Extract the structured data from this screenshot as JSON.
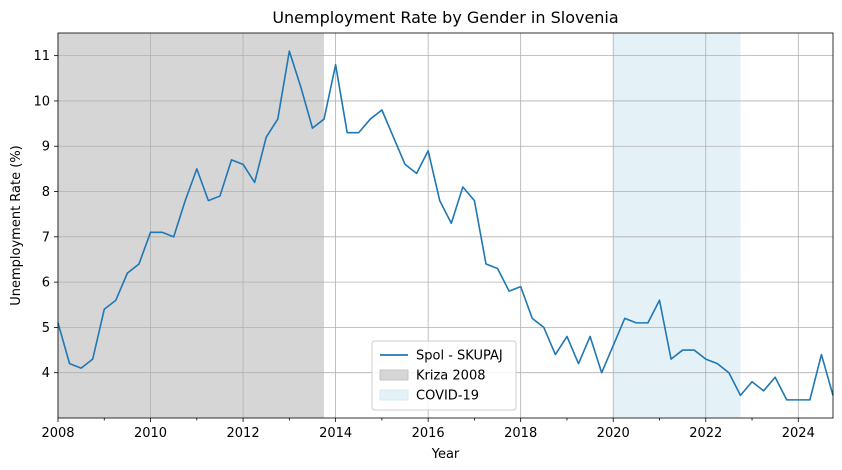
{
  "chart_data": {
    "type": "line",
    "title": "Unemployment Rate by Gender in Slovenia",
    "xlabel": "Year",
    "ylabel": "Unemployment Rate (%)",
    "xlim": [
      2008.0,
      2024.75
    ],
    "ylim": [
      3.0,
      11.5
    ],
    "grid": true,
    "legend_placement": "lower center",
    "x_ticks": [
      2008,
      2010,
      2012,
      2014,
      2016,
      2018,
      2020,
      2022,
      2024
    ],
    "y_ticks": [
      4,
      5,
      6,
      7,
      8,
      9,
      10,
      11
    ],
    "series": [
      {
        "name": "Spol - SKUPAJ",
        "color": "#1f77b4",
        "x": [
          2008.0,
          2008.25,
          2008.5,
          2008.75,
          2009.0,
          2009.25,
          2009.5,
          2009.75,
          2010.0,
          2010.25,
          2010.5,
          2010.75,
          2011.0,
          2011.25,
          2011.5,
          2011.75,
          2012.0,
          2012.25,
          2012.5,
          2012.75,
          2013.0,
          2013.25,
          2013.5,
          2013.75,
          2014.0,
          2014.25,
          2014.5,
          2014.75,
          2015.0,
          2015.25,
          2015.5,
          2015.75,
          2016.0,
          2016.25,
          2016.5,
          2016.75,
          2017.0,
          2017.25,
          2017.5,
          2017.75,
          2018.0,
          2018.25,
          2018.5,
          2018.75,
          2019.0,
          2019.25,
          2019.5,
          2019.75,
          2020.0,
          2020.25,
          2020.5,
          2020.75,
          2021.0,
          2021.25,
          2021.5,
          2021.75,
          2022.0,
          2022.25,
          2022.5,
          2022.75,
          2023.0,
          2023.25,
          2023.5,
          2023.75,
          2024.0,
          2024.25,
          2024.5,
          2024.75
        ],
        "values": [
          5.1,
          4.2,
          4.1,
          4.3,
          5.4,
          5.6,
          6.2,
          6.4,
          7.1,
          7.1,
          7.0,
          7.8,
          8.5,
          7.8,
          7.9,
          8.7,
          8.6,
          8.2,
          9.2,
          9.6,
          11.1,
          10.3,
          9.4,
          9.6,
          10.8,
          9.3,
          9.3,
          9.6,
          9.8,
          9.2,
          8.6,
          8.4,
          8.9,
          7.8,
          7.3,
          8.1,
          7.8,
          6.4,
          6.3,
          5.8,
          5.9,
          5.2,
          5.0,
          4.4,
          4.8,
          4.2,
          4.8,
          4.0,
          4.6,
          5.2,
          5.1,
          5.1,
          5.6,
          4.3,
          4.5,
          4.5,
          4.3,
          4.2,
          4.0,
          3.5,
          3.8,
          3.6,
          3.9,
          3.4,
          3.4,
          3.4,
          4.4,
          3.5
        ]
      }
    ],
    "shaded_regions": [
      {
        "name": "Kriza 2008",
        "start": 2008.0,
        "end": 2013.75,
        "color": "#d6d6d6"
      },
      {
        "name": "COVID-19",
        "start": 2020.0,
        "end": 2022.75,
        "color": "#e4f2f7"
      }
    ]
  }
}
